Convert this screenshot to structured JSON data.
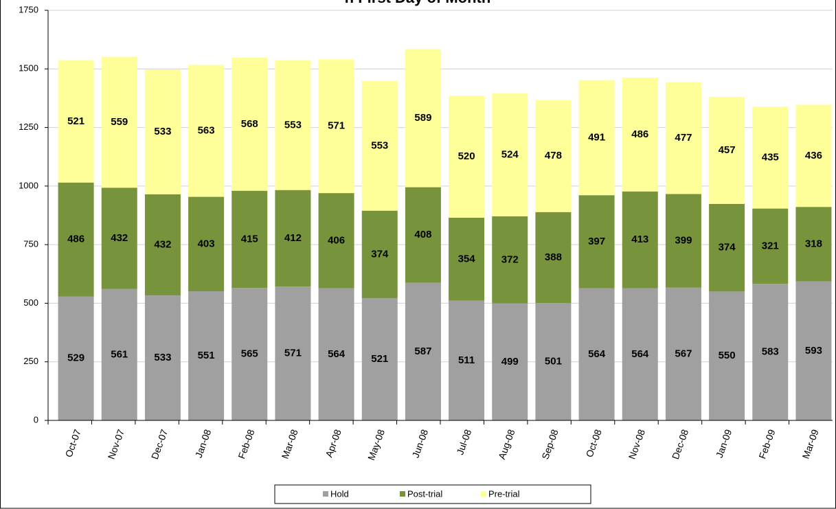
{
  "chart_data": {
    "type": "stacked_bar",
    "title": "n First Day of Month",
    "categories": [
      "Oct-07",
      "Nov-07",
      "Dec-07",
      "Jan-08",
      "Feb-08",
      "Mar-08",
      "Apr-08",
      "May-08",
      "Jun-08",
      "Jul-08",
      "Aug-08",
      "Sep-08",
      "Oct-08",
      "Nov-08",
      "Dec-08",
      "Jan-09",
      "Feb-09",
      "Mar-09"
    ],
    "series": [
      {
        "name": "Hold",
        "color": "#a0a0a0",
        "values": [
          529,
          561,
          533,
          551,
          565,
          571,
          564,
          521,
          587,
          511,
          499,
          501,
          564,
          564,
          567,
          550,
          583,
          593
        ]
      },
      {
        "name": "Post-trial",
        "color": "#77933c",
        "values": [
          486,
          432,
          432,
          403,
          415,
          412,
          406,
          374,
          408,
          354,
          372,
          388,
          397,
          413,
          399,
          374,
          321,
          318
        ]
      },
      {
        "name": "Pre-trial",
        "color": "#ffff99",
        "values": [
          521,
          559,
          533,
          563,
          568,
          553,
          571,
          553,
          589,
          520,
          524,
          478,
          491,
          486,
          477,
          457,
          435,
          436
        ]
      }
    ],
    "ylim": [
      0,
      1750
    ],
    "yticks": [
      0,
      250,
      500,
      750,
      1000,
      1250,
      1500,
      1750
    ],
    "grid": true,
    "legend": "bottom"
  }
}
